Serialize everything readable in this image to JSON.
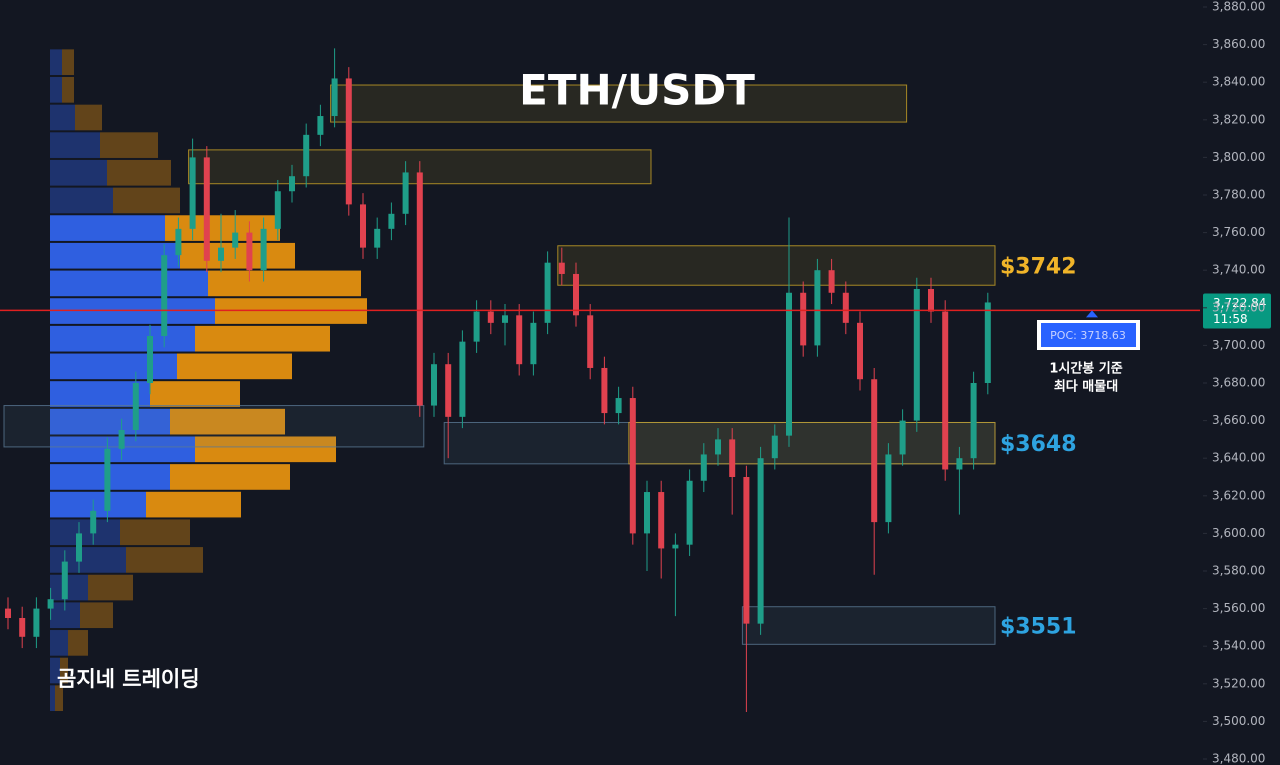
{
  "chart_data": {
    "type": "candlestick",
    "title": "ETH/USDT",
    "watermark": "곰지네 트레이딩",
    "open": [
      3560,
      3555,
      3545,
      3560,
      3565,
      3585,
      3600,
      3612,
      3645,
      3655,
      3680,
      3705,
      3748,
      3762,
      3800,
      3745,
      3752,
      3760,
      3740,
      3762,
      3782,
      3790,
      3812,
      3822,
      3842,
      3775,
      3752,
      3762,
      3770,
      3792,
      3668,
      3690,
      3662,
      3702,
      3718,
      3712,
      3716,
      3690,
      3712,
      3744,
      3738,
      3716,
      3688,
      3664,
      3672,
      3600,
      3622,
      3592,
      3594,
      3628,
      3642,
      3650,
      3630,
      3552,
      3640,
      3652,
      3728,
      3700,
      3740,
      3728,
      3712,
      3682,
      3606,
      3642,
      3660,
      3730,
      3718,
      3634,
      3640,
      3680
    ],
    "high": [
      3566,
      3561,
      3566,
      3571,
      3591,
      3606,
      3618,
      3651,
      3661,
      3686,
      3711,
      3754,
      3768,
      3810,
      3806,
      3770,
      3772,
      3766,
      3768,
      3788,
      3796,
      3818,
      3828,
      3858,
      3848,
      3781,
      3768,
      3776,
      3798,
      3798,
      3696,
      3696,
      3708,
      3724,
      3724,
      3722,
      3722,
      3718,
      3750,
      3752,
      3744,
      3722,
      3694,
      3678,
      3678,
      3628,
      3628,
      3600,
      3634,
      3648,
      3656,
      3656,
      3636,
      3646,
      3658,
      3768,
      3734,
      3746,
      3746,
      3734,
      3718,
      3688,
      3648,
      3666,
      3736,
      3736,
      3724,
      3646,
      3686,
      3728
    ],
    "low": [
      3549,
      3539,
      3539,
      3554,
      3559,
      3579,
      3594,
      3606,
      3639,
      3649,
      3674,
      3699,
      3742,
      3756,
      3739,
      3739,
      3746,
      3734,
      3734,
      3756,
      3776,
      3784,
      3806,
      3816,
      3769,
      3746,
      3746,
      3756,
      3764,
      3662,
      3662,
      3640,
      3656,
      3696,
      3706,
      3700,
      3684,
      3684,
      3706,
      3732,
      3710,
      3682,
      3658,
      3658,
      3594,
      3580,
      3576,
      3556,
      3588,
      3622,
      3636,
      3610,
      3505,
      3546,
      3634,
      3646,
      3694,
      3694,
      3722,
      3706,
      3676,
      3578,
      3600,
      3636,
      3654,
      3712,
      3628,
      3610,
      3634,
      3674
    ],
    "close": [
      3555,
      3545,
      3560,
      3565,
      3585,
      3600,
      3612,
      3645,
      3655,
      3680,
      3705,
      3748,
      3762,
      3800,
      3745,
      3752,
      3760,
      3740,
      3762,
      3782,
      3790,
      3812,
      3822,
      3842,
      3775,
      3752,
      3762,
      3770,
      3792,
      3668,
      3690,
      3662,
      3702,
      3718,
      3712,
      3716,
      3690,
      3712,
      3744,
      3738,
      3716,
      3688,
      3664,
      3672,
      3600,
      3622,
      3592,
      3594,
      3628,
      3642,
      3650,
      3630,
      3552,
      3640,
      3652,
      3728,
      3700,
      3740,
      3728,
      3712,
      3682,
      3606,
      3642,
      3660,
      3730,
      3718,
      3634,
      3640,
      3680,
      3722.84
    ],
    "up_color": "#1f9e89",
    "down_color": "#e0424f",
    "ylim": [
      3480,
      3880
    ],
    "yticks": [
      {
        "value": 3880,
        "label": "3,880.00"
      },
      {
        "value": 3860,
        "label": "3,860.00"
      },
      {
        "value": 3840,
        "label": "3,840.00"
      },
      {
        "value": 3820,
        "label": "3,820.00"
      },
      {
        "value": 3800,
        "label": "3,800.00"
      },
      {
        "value": 3780,
        "label": "3,780.00"
      },
      {
        "value": 3760,
        "label": "3,760.00"
      },
      {
        "value": 3740,
        "label": "3,740.00"
      },
      {
        "value": 3720,
        "label": "3,720.00"
      },
      {
        "value": 3700,
        "label": "3,700.00"
      },
      {
        "value": 3680,
        "label": "3,680.00"
      },
      {
        "value": 3660,
        "label": "3,660.00"
      },
      {
        "value": 3640,
        "label": "3,640.00"
      },
      {
        "value": 3620,
        "label": "3,620.00"
      },
      {
        "value": 3600,
        "label": "3,600.00"
      },
      {
        "value": 3580,
        "label": "3,580.00"
      },
      {
        "value": 3560,
        "label": "3,560.00"
      },
      {
        "value": 3540,
        "label": "3,540.00"
      },
      {
        "value": 3520,
        "label": "3,520.00"
      },
      {
        "value": 3500,
        "label": "3,500.00"
      },
      {
        "value": 3480,
        "label": "3,480.00"
      }
    ],
    "grid": false,
    "last_price": {
      "value": 3722.84,
      "label": "3,722.84",
      "time": "11:58",
      "color": "#089981"
    },
    "poc": {
      "value": 3718.63,
      "label": "POC: 3718.63",
      "color": "#e02020",
      "note": [
        "1시간봉 기준",
        "최다 매물대"
      ]
    },
    "volume_profile": {
      "up_color": "#2f5fe0",
      "down_color": "#d98a10",
      "up": [
        12,
        12,
        25,
        50,
        57,
        63,
        115,
        130,
        158,
        165,
        145,
        127,
        100,
        120,
        145,
        120,
        96,
        70,
        76,
        38,
        30,
        18,
        10,
        5
      ],
      "down": [
        12,
        12,
        27,
        58,
        64,
        67,
        115,
        115,
        153,
        152,
        135,
        115,
        90,
        115,
        141,
        120,
        95,
        70,
        77,
        45,
        33,
        20,
        8,
        8
      ]
    },
    "zones": [
      {
        "top": 3838.5,
        "bottom": 3818.8,
        "from": 23,
        "to": 63,
        "color": "#c9a227"
      },
      {
        "top": 3804,
        "bottom": 3786,
        "from": 13,
        "to": 45,
        "color": "#c9a227"
      },
      {
        "top": 3753,
        "bottom": 3732,
        "from": 39,
        "to": 70,
        "color": "#c9a227",
        "label": "$3742"
      },
      {
        "top": 3668,
        "bottom": 3646,
        "from": 0,
        "to": 29,
        "color": "#5a7894"
      },
      {
        "top": 3659,
        "bottom": 3637,
        "from": 31,
        "to": 70,
        "color": "#5a7894",
        "label": "$3648"
      },
      {
        "top": 3659,
        "bottom": 3637,
        "from": 44,
        "to": 70,
        "color": "#c9a227"
      },
      {
        "top": 3561,
        "bottom": 3541,
        "from": 52,
        "to": 70,
        "color": "#5a7894",
        "label": "$3551"
      }
    ]
  }
}
